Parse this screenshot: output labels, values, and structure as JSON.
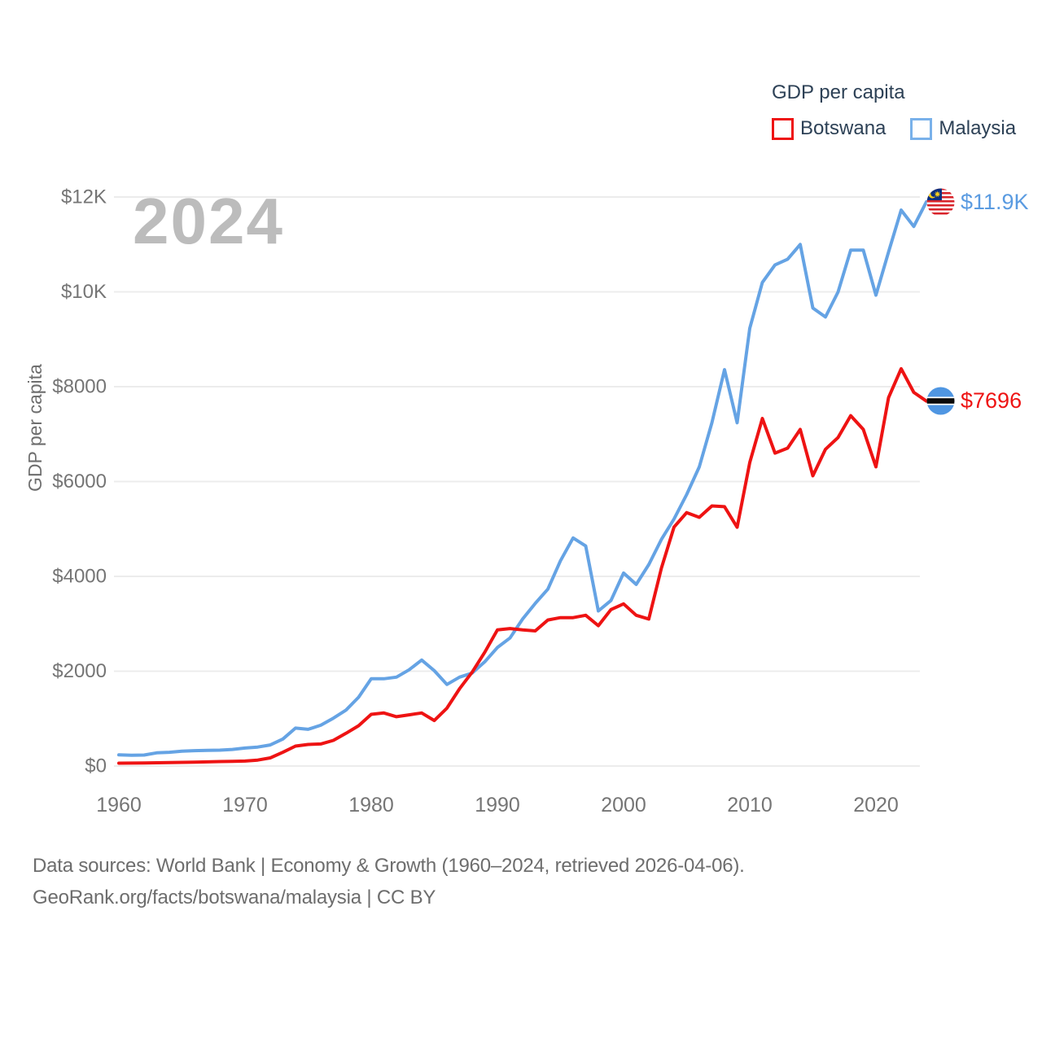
{
  "legend": {
    "title": "GDP per capita",
    "items": [
      {
        "label": "Botswana",
        "color": "#ee1313"
      },
      {
        "label": "Malaysia",
        "color": "#79b1ea"
      }
    ]
  },
  "watermark": "2024",
  "y_axis": {
    "title": "GDP per capita",
    "ticks": [
      {
        "label": "$0",
        "value": 0
      },
      {
        "label": "$2000",
        "value": 2000
      },
      {
        "label": "$4000",
        "value": 4000
      },
      {
        "label": "$6000",
        "value": 6000
      },
      {
        "label": "$8000",
        "value": 8000
      },
      {
        "label": "$10K",
        "value": 10000
      },
      {
        "label": "$12K",
        "value": 12000
      }
    ]
  },
  "x_axis": {
    "ticks": [
      {
        "label": "1960",
        "value": 1960
      },
      {
        "label": "1970",
        "value": 1970
      },
      {
        "label": "1980",
        "value": 1980
      },
      {
        "label": "1990",
        "value": 1990
      },
      {
        "label": "2000",
        "value": 2000
      },
      {
        "label": "2010",
        "value": 2010
      },
      {
        "label": "2020",
        "value": 2020
      }
    ]
  },
  "end_labels": {
    "malaysia": {
      "value": "$11.9K",
      "flag": "malaysia-flag-icon"
    },
    "botswana": {
      "value": "$7696",
      "flag": "botswana-flag-icon"
    }
  },
  "footer": {
    "line1": "Data sources: World Bank | Economy & Growth (1960–2024, retrieved 2026-04-06).",
    "line2": "GeoRank.org/facts/botswana/malaysia | CC BY"
  },
  "chart_data": {
    "type": "line",
    "title": "GDP per capita",
    "ylabel": "GDP per capita",
    "ylim": [
      0,
      12000
    ],
    "xlim": [
      1960,
      2024
    ],
    "grid": "horizontal",
    "legend_position": "top-right",
    "x": [
      1960,
      1961,
      1962,
      1963,
      1964,
      1965,
      1966,
      1967,
      1968,
      1969,
      1970,
      1971,
      1972,
      1973,
      1974,
      1975,
      1976,
      1977,
      1978,
      1979,
      1980,
      1981,
      1982,
      1983,
      1984,
      1985,
      1986,
      1987,
      1988,
      1989,
      1990,
      1991,
      1992,
      1993,
      1994,
      1995,
      1996,
      1997,
      1998,
      1999,
      2000,
      2001,
      2002,
      2003,
      2004,
      2005,
      2006,
      2007,
      2008,
      2009,
      2010,
      2011,
      2012,
      2013,
      2014,
      2015,
      2016,
      2017,
      2018,
      2019,
      2020,
      2021,
      2022,
      2023,
      2024
    ],
    "series": [
      {
        "name": "Malaysia",
        "color": "#65a3e4",
        "values": [
          235,
          228,
          232,
          278,
          290,
          312,
          325,
          330,
          335,
          350,
          380,
          400,
          445,
          570,
          800,
          775,
          860,
          1010,
          1180,
          1450,
          1840,
          1840,
          1875,
          2030,
          2235,
          2010,
          1720,
          1875,
          1960,
          2200,
          2500,
          2700,
          3100,
          3430,
          3730,
          4330,
          4810,
          4640,
          3270,
          3490,
          4070,
          3830,
          4250,
          4780,
          5210,
          5725,
          6310,
          7240,
          8360,
          7240,
          9230,
          10200,
          10570,
          10690,
          11000,
          9660,
          9470,
          10000,
          10880,
          10880,
          9930,
          10840,
          11725,
          11380,
          11900
        ]
      },
      {
        "name": "Botswana",
        "color": "#ee1313",
        "values": [
          60,
          62,
          65,
          68,
          72,
          77,
          82,
          88,
          95,
          100,
          105,
          125,
          172,
          290,
          420,
          455,
          465,
          540,
          690,
          850,
          1090,
          1120,
          1040,
          1080,
          1120,
          960,
          1220,
          1630,
          1980,
          2400,
          2870,
          2900,
          2870,
          2850,
          3080,
          3130,
          3130,
          3180,
          2960,
          3300,
          3420,
          3180,
          3100,
          4175,
          5040,
          5345,
          5245,
          5485,
          5470,
          5035,
          6400,
          7330,
          6600,
          6705,
          7100,
          6120,
          6680,
          6930,
          7390,
          7100,
          6310,
          7770,
          8380,
          7880,
          7696
        ]
      }
    ],
    "end_annotations": [
      {
        "series": "Malaysia",
        "label": "$11.9K"
      },
      {
        "series": "Botswana",
        "label": "$7696"
      }
    ]
  }
}
